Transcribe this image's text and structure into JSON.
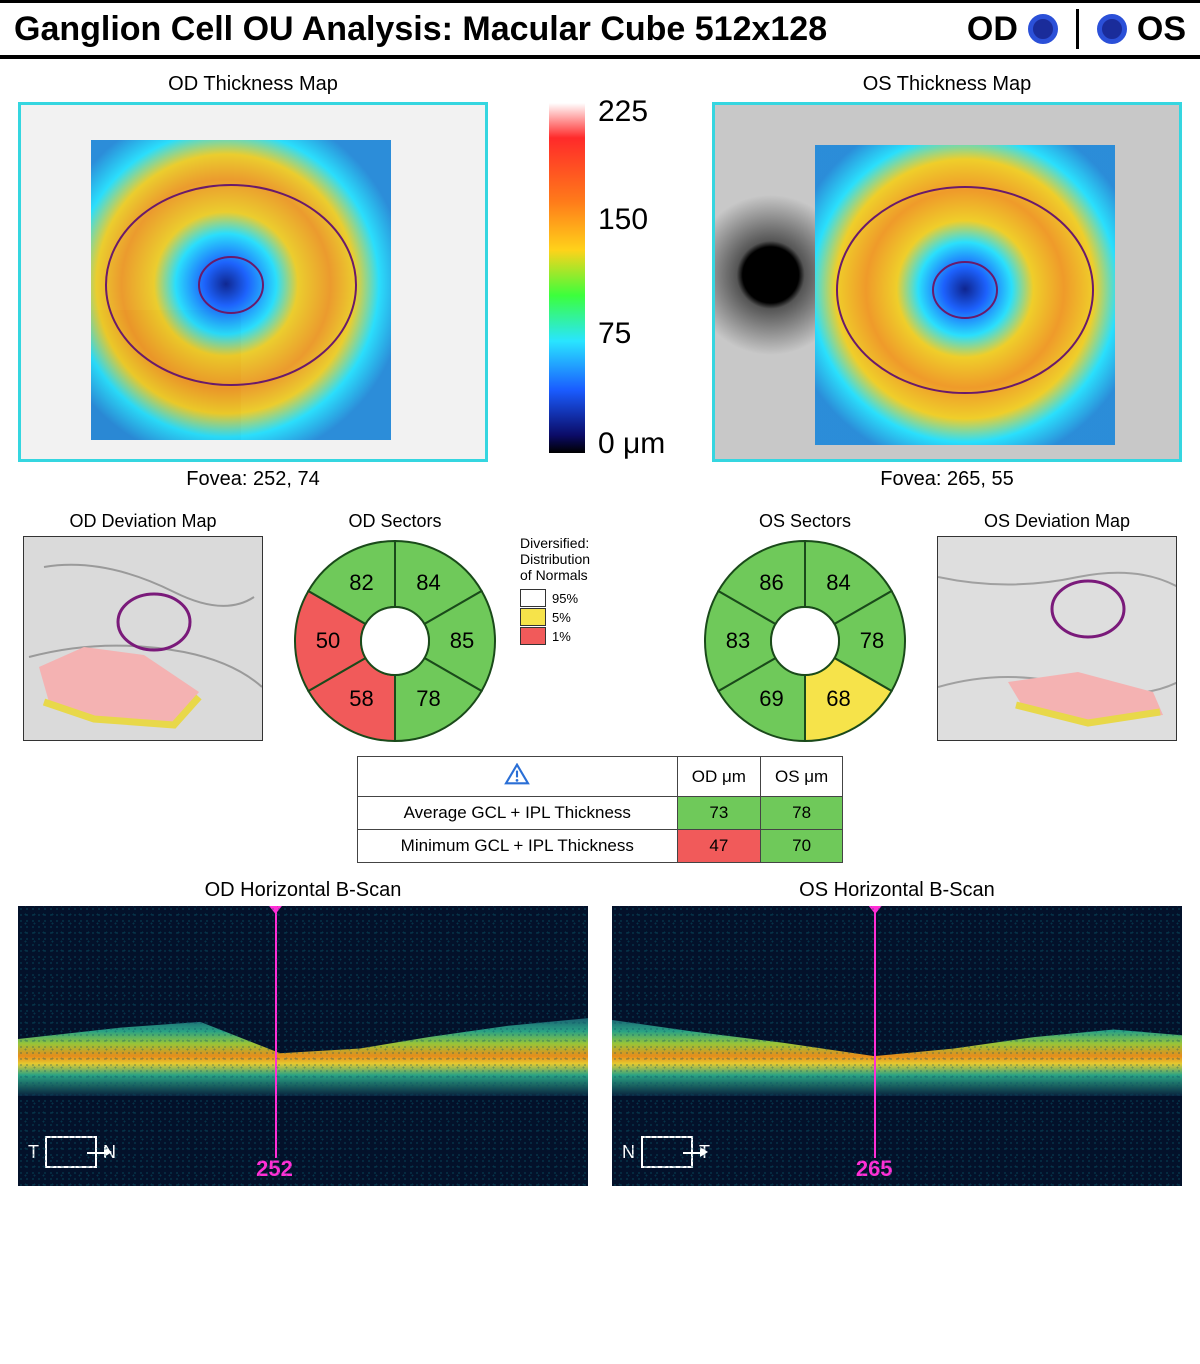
{
  "header": {
    "title": "Ganglion Cell OU Analysis: Macular Cube 512x128",
    "od_label": "OD",
    "os_label": "OS",
    "eye_indicator_color": "#1a2c9a",
    "eye_indicator_ring": "#2b50d8"
  },
  "thickness": {
    "od_title": "OD Thickness Map",
    "os_title": "OS Thickness Map",
    "od_fovea": "Fovea: 252, 74",
    "os_fovea": "Fovea: 265, 55",
    "border_color": "#35d6e0"
  },
  "colorbar": {
    "ticks": [
      "225",
      "150",
      "75",
      "0 μm"
    ],
    "stops": [
      "#ffffff",
      "#ff2a2a",
      "#ff7a1a",
      "#ffd21a",
      "#3cff3c",
      "#29e5ff",
      "#1a5cff",
      "#0b0b66",
      "#000000"
    ]
  },
  "deviation": {
    "od_title": "OD Deviation Map",
    "os_title": "OS Deviation Map"
  },
  "sectors": {
    "od_title": "OD Sectors",
    "os_title": "OS Sectors",
    "od": [
      {
        "angle_start": -90,
        "angle_end": -30,
        "value": 84,
        "color": "#6fc95a"
      },
      {
        "angle_start": -30,
        "angle_end": 30,
        "value": 85,
        "color": "#6fc95a"
      },
      {
        "angle_start": 30,
        "angle_end": 90,
        "value": 78,
        "color": "#6fc95a"
      },
      {
        "angle_start": 90,
        "angle_end": 150,
        "value": 58,
        "color": "#f15a5a"
      },
      {
        "angle_start": 150,
        "angle_end": 210,
        "value": 50,
        "color": "#f15a5a"
      },
      {
        "angle_start": 210,
        "angle_end": 270,
        "value": 82,
        "color": "#6fc95a"
      }
    ],
    "os": [
      {
        "angle_start": -90,
        "angle_end": -30,
        "value": 84,
        "color": "#6fc95a"
      },
      {
        "angle_start": -30,
        "angle_end": 30,
        "value": 78,
        "color": "#6fc95a"
      },
      {
        "angle_start": 30,
        "angle_end": 90,
        "value": 68,
        "color": "#f6e34a"
      },
      {
        "angle_start": 90,
        "angle_end": 150,
        "value": 69,
        "color": "#6fc95a"
      },
      {
        "angle_start": 150,
        "angle_end": 210,
        "value": 83,
        "color": "#6fc95a"
      },
      {
        "angle_start": 210,
        "angle_end": 270,
        "value": 86,
        "color": "#6fc95a"
      }
    ],
    "inner_radius": 34,
    "outer_radius": 100,
    "stroke": "#1a4a1a"
  },
  "legend": {
    "title": "Diversified:\nDistribution\nof Normals",
    "rows": [
      {
        "label": "95%",
        "color": "#ffffff"
      },
      {
        "label": "5%",
        "color": "#f6e34a"
      },
      {
        "label": "1%",
        "color": "#f15a5a"
      }
    ]
  },
  "stats": {
    "col_od": "OD μm",
    "col_os": "OS μm",
    "rows": [
      {
        "label": "Average GCL + IPL Thickness",
        "od": 73,
        "od_class": "green",
        "os": 78,
        "os_class": "green"
      },
      {
        "label": "Minimum GCL + IPL Thickness",
        "od": 47,
        "od_class": "red",
        "os": 70,
        "os_class": "green"
      }
    ],
    "warning_color": "#2a6fd6"
  },
  "bscan": {
    "od_title": "OD Horizontal B-Scan",
    "os_title": "OS Horizontal B-Scan",
    "od_pos_pct": 45,
    "os_pos_pct": 46,
    "od_num": "252",
    "os_num": "265",
    "od_tn_left": "T",
    "od_tn_right": "N",
    "os_tn_left": "N",
    "os_tn_right": "T",
    "scanline_color": "#ff2fd6"
  }
}
